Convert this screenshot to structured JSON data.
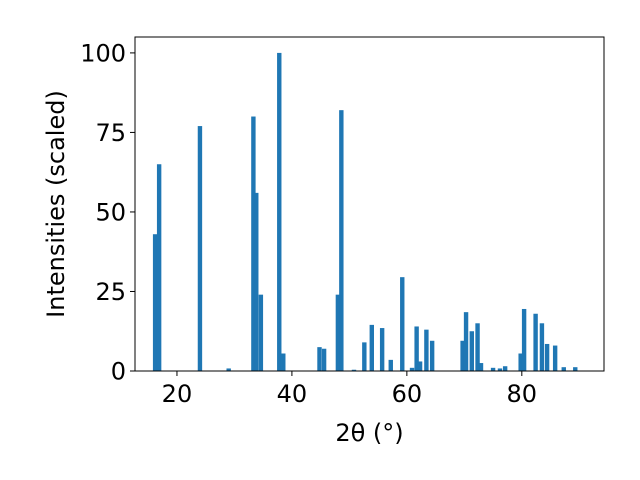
{
  "chart_data": {
    "type": "bar",
    "title": "",
    "xlabel": "2θ (°)",
    "ylabel": "Intensities (scaled)",
    "xlim": [
      12.7,
      94.3
    ],
    "ylim": [
      0,
      105
    ],
    "xticks": [
      20,
      40,
      60,
      80
    ],
    "yticks": [
      0,
      25,
      50,
      75,
      100
    ],
    "grid": false,
    "legend": "none",
    "bar_color": "#1f77b4",
    "points": [
      {
        "x": 16.2,
        "y": 43
      },
      {
        "x": 16.9,
        "y": 65
      },
      {
        "x": 24.0,
        "y": 77
      },
      {
        "x": 29.0,
        "y": 0.8
      },
      {
        "x": 33.3,
        "y": 80
      },
      {
        "x": 33.8,
        "y": 56
      },
      {
        "x": 34.6,
        "y": 24
      },
      {
        "x": 37.8,
        "y": 100
      },
      {
        "x": 38.5,
        "y": 5.5
      },
      {
        "x": 44.8,
        "y": 7.5
      },
      {
        "x": 45.6,
        "y": 7
      },
      {
        "x": 48.0,
        "y": 24
      },
      {
        "x": 48.6,
        "y": 82
      },
      {
        "x": 50.8,
        "y": 0.4
      },
      {
        "x": 52.6,
        "y": 9
      },
      {
        "x": 53.9,
        "y": 14.5
      },
      {
        "x": 55.7,
        "y": 13.5
      },
      {
        "x": 57.2,
        "y": 3.5
      },
      {
        "x": 59.2,
        "y": 29.5
      },
      {
        "x": 60.9,
        "y": 1
      },
      {
        "x": 61.7,
        "y": 14
      },
      {
        "x": 62.3,
        "y": 3
      },
      {
        "x": 63.4,
        "y": 13
      },
      {
        "x": 64.4,
        "y": 9.5
      },
      {
        "x": 69.7,
        "y": 9.5
      },
      {
        "x": 70.3,
        "y": 18.5
      },
      {
        "x": 71.3,
        "y": 12.5
      },
      {
        "x": 72.3,
        "y": 15
      },
      {
        "x": 72.9,
        "y": 2.5
      },
      {
        "x": 75.0,
        "y": 1
      },
      {
        "x": 76.2,
        "y": 0.8
      },
      {
        "x": 77.1,
        "y": 1.5
      },
      {
        "x": 79.8,
        "y": 5.5
      },
      {
        "x": 80.4,
        "y": 19.5
      },
      {
        "x": 82.4,
        "y": 18
      },
      {
        "x": 83.5,
        "y": 15
      },
      {
        "x": 84.4,
        "y": 8.5
      },
      {
        "x": 85.8,
        "y": 8
      },
      {
        "x": 87.3,
        "y": 1.2
      },
      {
        "x": 89.3,
        "y": 1.2
      }
    ]
  }
}
